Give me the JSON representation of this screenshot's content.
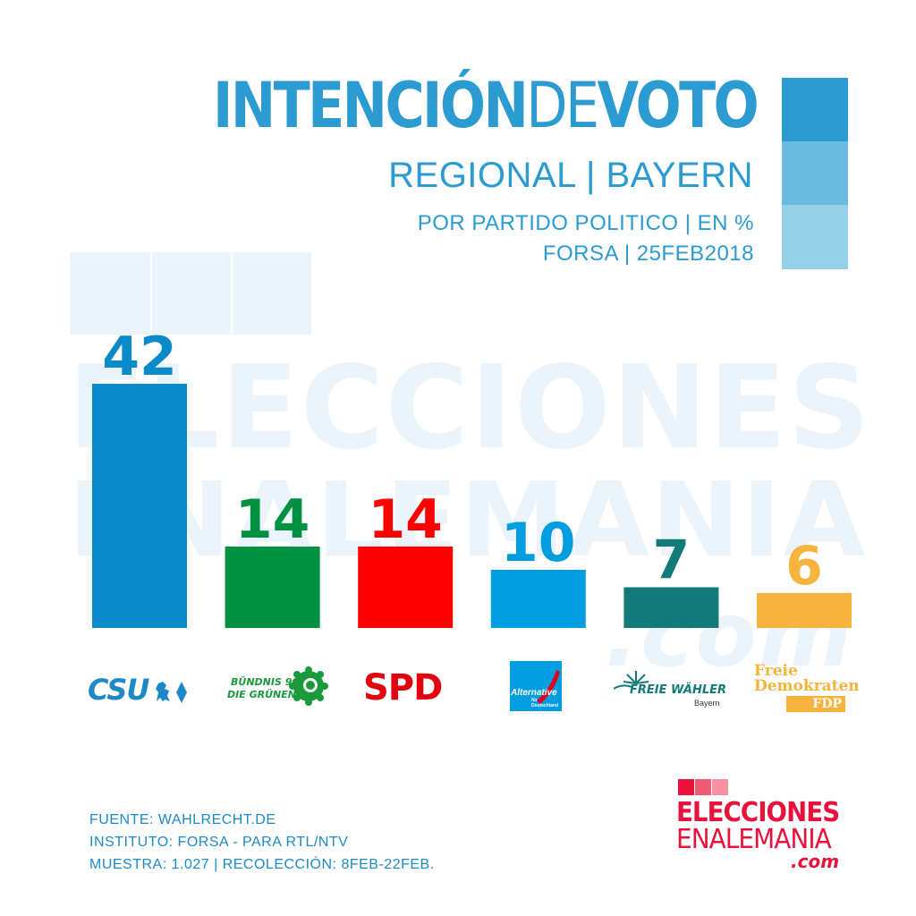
{
  "header": {
    "title_bold_1": "INTENCIÓN",
    "title_light": "DE",
    "title_bold_2": "VOTO",
    "subtitle": "REGIONAL | BAYERN",
    "meta_line_1": "POR PARTIDO POLITICO | EN %",
    "meta_line_2": "FORSA | 25FEB2018"
  },
  "watermark": {
    "line_1": "ELECCIONES",
    "line_2": "ENALEMANIA",
    "line_3": ".com"
  },
  "colors": {
    "accent": "#2b9bd2",
    "csu": "#0a8ac8",
    "gruene": "#009142",
    "spd": "#ff0000",
    "afd": "#009ee0",
    "freie_waehler": "#137a7a",
    "fdp": "#f6b33d",
    "brand_red": "#e8123c"
  },
  "chart_data": {
    "type": "bar",
    "categories": [
      "CSU",
      "BÜNDNIS 90 DIE GRÜNEN",
      "SPD",
      "Alternative für Deutschland",
      "FREIE WÄHLER Bayern",
      "Freie Demokraten FDP"
    ],
    "values": [
      42,
      14,
      14,
      10,
      7,
      6
    ],
    "colors": [
      "#0a8ac8",
      "#009142",
      "#ff0000",
      "#009ee0",
      "#137a7a",
      "#f6b33d"
    ],
    "value_label_colors": [
      "#0a8ac8",
      "#009142",
      "#ff0000",
      "#009ee0",
      "#137a7a",
      "#f6b33d"
    ],
    "ylabel": "%",
    "ylim": [
      0,
      42
    ],
    "grid": false
  },
  "logos": {
    "csu": "CSU",
    "gruene_line_1": "BÜNDNIS 90",
    "gruene_line_2": "DIE GRÜNEN",
    "spd": "SPD",
    "afd_line_1": "Alternative",
    "afd_line_2": "für",
    "afd_line_3": "Deutschland",
    "fw_line_1": "FREIE WÄHLER",
    "fw_line_2": "Bayern",
    "fdp_line_1": "Freie",
    "fdp_line_2": "Demokraten",
    "fdp_line_3": "FDP"
  },
  "footer": {
    "source": "FUENTE: WAHLRECHT.DE",
    "institute": "INSTITUTO: FORSA - PARA RTL/NTV",
    "sample": "MUESTRA: 1.027 | RECOLECCIÓN: 8FEB-22FEB.",
    "brand_line_1": "ELECCIONES",
    "brand_line_2": "ENALEMANIA",
    "brand_line_3": ".com"
  }
}
